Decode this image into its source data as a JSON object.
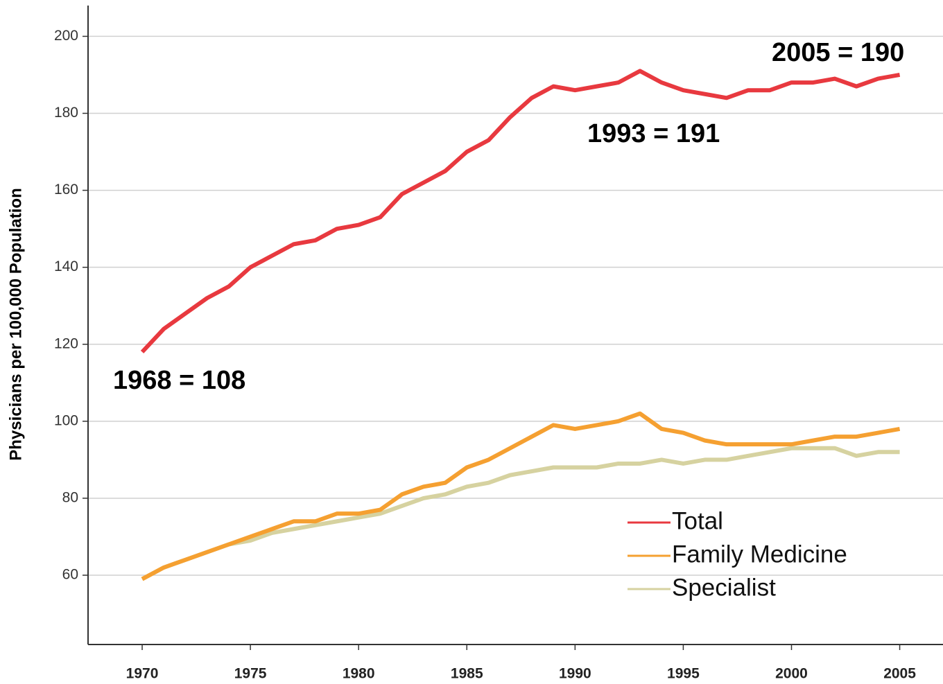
{
  "chart_data": {
    "type": "line",
    "y_label": "Physicians per 100,000 Population",
    "annotations": [
      "1968 = 108",
      "1993 = 191",
      "2005 = 190"
    ],
    "x": [
      1970,
      1971,
      1972,
      1973,
      1974,
      1975,
      1976,
      1977,
      1978,
      1979,
      1980,
      1981,
      1982,
      1983,
      1984,
      1985,
      1986,
      1987,
      1988,
      1989,
      1990,
      1991,
      1992,
      1993,
      1994,
      1995,
      1996,
      1997,
      1998,
      1999,
      2000,
      2001,
      2002,
      2003,
      2004,
      2005
    ],
    "series": [
      {
        "name": "Total",
        "color": "#e8393f",
        "values": [
          118,
          124,
          128,
          132,
          135,
          140,
          143,
          146,
          147,
          150,
          151,
          153,
          159,
          162,
          165,
          170,
          173,
          179,
          184,
          187,
          186,
          187,
          188,
          191,
          188,
          186,
          185,
          184,
          186,
          186,
          188,
          188,
          189,
          187,
          189,
          190
        ]
      },
      {
        "name": "Family Medicine",
        "color": "#f5a031",
        "values": [
          59,
          62,
          64,
          66,
          68,
          70,
          72,
          74,
          74,
          76,
          76,
          77,
          81,
          83,
          84,
          88,
          90,
          93,
          96,
          99,
          98,
          99,
          100,
          102,
          98,
          97,
          95,
          94,
          94,
          94,
          94,
          95,
          96,
          96,
          97,
          98
        ]
      },
      {
        "name": "Specialist",
        "color": "#d6d2a0",
        "values": [
          59,
          62,
          64,
          66,
          68,
          69,
          71,
          72,
          73,
          74,
          75,
          76,
          78,
          80,
          81,
          83,
          84,
          86,
          87,
          88,
          88,
          88,
          89,
          89,
          90,
          89,
          90,
          90,
          91,
          92,
          93,
          93,
          93,
          91,
          92,
          92
        ]
      }
    ],
    "xlim": [
      1967.5,
      2007
    ],
    "ylim": [
      42,
      208
    ],
    "xticks": [
      1970,
      1975,
      1980,
      1985,
      1990,
      1995,
      2000,
      2005
    ],
    "yticks": [
      60,
      80,
      100,
      120,
      140,
      160,
      180,
      200
    ],
    "grid": true,
    "legend": "lower right"
  }
}
